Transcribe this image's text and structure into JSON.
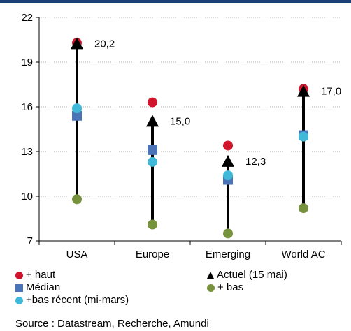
{
  "chart_data": {
    "type": "scatter",
    "categories": [
      "USA",
      "Europe",
      "Emerging",
      "World AC"
    ],
    "y_axis": {
      "min": 7,
      "max": 22,
      "ticks": [
        7,
        10,
        13,
        16,
        19,
        22
      ]
    },
    "grid": true,
    "series": [
      {
        "name": "+ haut",
        "marker": "circle",
        "color": "#d0142c",
        "values": [
          20.3,
          16.3,
          13.4,
          17.2
        ]
      },
      {
        "name": "Actuel (15 mai)",
        "marker": "triangle",
        "color": "#000000",
        "values": [
          20.2,
          15.0,
          12.3,
          17.0
        ]
      },
      {
        "name": "Médian",
        "marker": "square",
        "color": "#4a73b8",
        "values": [
          15.4,
          13.1,
          11.1,
          14.1
        ]
      },
      {
        "name": "+ bas",
        "marker": "circle",
        "color": "#76923c",
        "values": [
          9.8,
          8.1,
          7.5,
          9.2
        ]
      },
      {
        "name": "+bas récent (mi-mars)",
        "marker": "circle",
        "color": "#40b8d8",
        "values": [
          15.9,
          12.3,
          11.4,
          14.0
        ]
      }
    ],
    "data_labels": [
      "20,2",
      "15,0",
      "12,3",
      "17,0"
    ]
  },
  "legend": {
    "items": [
      {
        "label": "+ haut",
        "shape": "circle",
        "color": "#d0142c"
      },
      {
        "label": "Actuel (15 mai)",
        "shape": "triangle",
        "color": "#000000"
      },
      {
        "label": "Médian",
        "shape": "square",
        "color": "#4a73b8"
      },
      {
        "label": "+ bas",
        "shape": "circle",
        "color": "#76923c"
      },
      {
        "label": "+bas récent (mi-mars)",
        "shape": "circle",
        "color": "#40b8d8"
      }
    ]
  },
  "source": "Source : Datastream, Recherche, Amundi",
  "colors": {
    "top_bar": "#1c3f78",
    "grid": "#b0b0b0",
    "range_line": "#000000"
  }
}
